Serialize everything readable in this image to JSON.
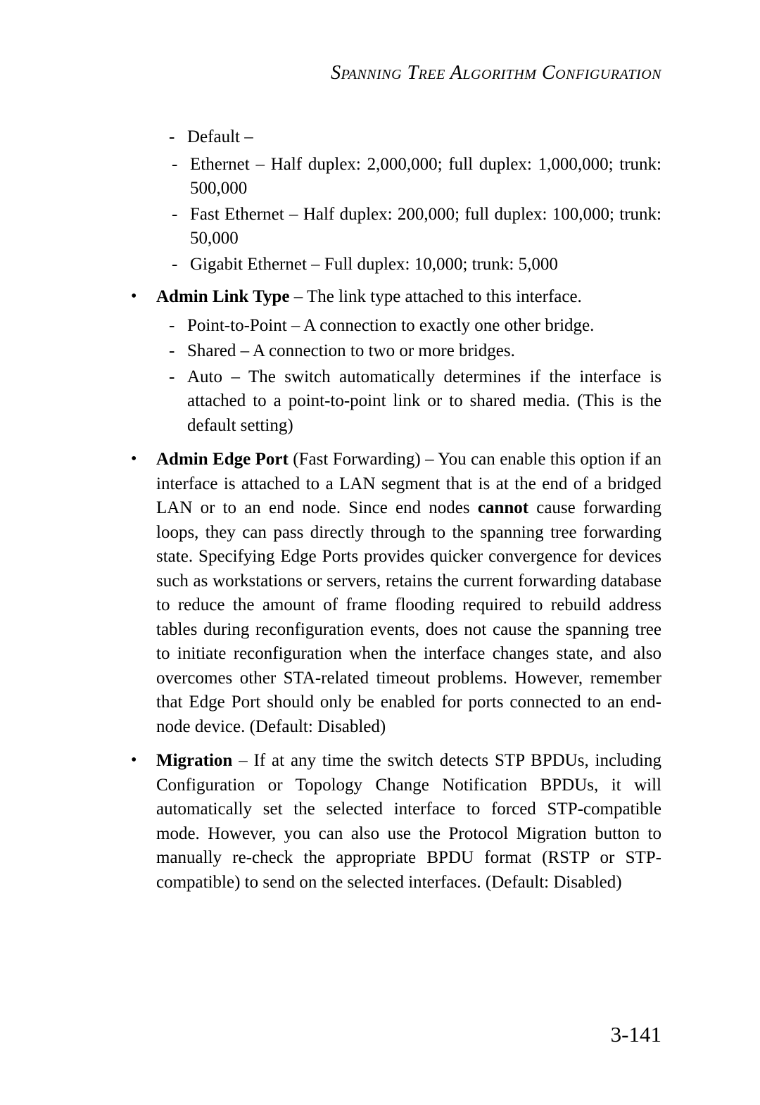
{
  "header": {
    "title": "Spanning Tree Algorithm Configuration"
  },
  "default_section": {
    "label": "Default –",
    "items": [
      "Ethernet – Half duplex: 2,000,000; full duplex: 1,000,000; trunk: 500,000",
      "Fast Ethernet – Half duplex: 200,000; full duplex: 100,000; trunk: 50,000",
      "Gigabit Ethernet – Full duplex: 10,000; trunk: 5,000"
    ]
  },
  "bullets": [
    {
      "title": "Admin Link Type",
      "rest": " – The link type attached to this interface.",
      "subitems": [
        "Point-to-Point – A connection to exactly one other bridge.",
        "Shared – A connection to two or more bridges.",
        "Auto – The switch automatically determines if the interface is attached to a point-to-point link or to shared media. (This is the default setting)"
      ]
    },
    {
      "title": "Admin Edge Port",
      "paren": " (Fast Forwarding)",
      "rest_pre": " – You can enable this option if an interface is attached to a LAN segment that is at the end of a bridged LAN or to an end node. Since end nodes ",
      "strong_word": "cannot",
      "rest_post": " cause forwarding loops, they can pass directly through to the spanning tree forwarding state. Specifying Edge Ports provides quicker convergence for devices such as workstations or servers, retains the current forwarding database to reduce the amount of frame flooding required to rebuild address tables during reconfiguration events, does not cause the spanning tree to initiate reconfiguration when the interface changes state, and also overcomes other STA-related timeout problems. However, remember that Edge Port should only be enabled for ports connected to an end-node device. (Default: Disabled)"
    },
    {
      "title": "Migration",
      "rest": " – If at any time the switch detects STP BPDUs, including Configuration or Topology Change Notification BPDUs, it will automatically set the selected interface to forced STP-compatible mode. However, you can also use the Protocol Migration button to manually re-check the appropriate BPDU format (RSTP or STP-compatible) to send on the selected interfaces. (Default: Disabled)"
    }
  ],
  "page_number": "3-141"
}
